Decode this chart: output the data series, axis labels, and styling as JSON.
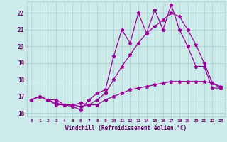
{
  "background_color": "#cceaea",
  "grid_color": "#aacccc",
  "line_color": "#990099",
  "marker": "*",
  "xlabel": "Windchill (Refroidissement éolien,°C)",
  "xlabel_color": "#660066",
  "ylabel_color": "#660066",
  "xlim": [
    -0.5,
    23.5
  ],
  "ylim": [
    15.8,
    22.7
  ],
  "xticks": [
    0,
    1,
    2,
    3,
    4,
    5,
    6,
    7,
    8,
    9,
    10,
    11,
    12,
    13,
    14,
    15,
    16,
    17,
    18,
    19,
    20,
    21,
    22,
    23
  ],
  "yticks": [
    16,
    17,
    18,
    19,
    20,
    21,
    22
  ],
  "series1_x": [
    0,
    1,
    2,
    3,
    4,
    5,
    6,
    7,
    8,
    9,
    10,
    11,
    12,
    13,
    14,
    15,
    16,
    17,
    18,
    19,
    20,
    21,
    22,
    23
  ],
  "series1_y": [
    16.8,
    17.0,
    16.8,
    16.5,
    16.5,
    16.4,
    16.2,
    16.8,
    17.2,
    17.4,
    19.4,
    21.0,
    20.2,
    22.0,
    20.8,
    22.2,
    21.0,
    22.5,
    21.0,
    20.0,
    18.8,
    18.8,
    17.5,
    17.5
  ],
  "series2_x": [
    0,
    1,
    2,
    3,
    4,
    5,
    6,
    7,
    8,
    9,
    10,
    11,
    12,
    13,
    14,
    15,
    16,
    17,
    18,
    19,
    20,
    21,
    22,
    23
  ],
  "series2_y": [
    16.8,
    17.0,
    16.8,
    16.6,
    16.5,
    16.5,
    16.4,
    16.5,
    16.8,
    17.2,
    18.0,
    18.8,
    19.5,
    20.2,
    20.8,
    21.2,
    21.6,
    22.0,
    21.8,
    21.0,
    20.1,
    19.0,
    17.8,
    17.5
  ],
  "series3_x": [
    0,
    1,
    2,
    3,
    4,
    5,
    6,
    7,
    8,
    9,
    10,
    11,
    12,
    13,
    14,
    15,
    16,
    17,
    18,
    19,
    20,
    21,
    22,
    23
  ],
  "series3_y": [
    16.8,
    17.0,
    16.8,
    16.8,
    16.5,
    16.5,
    16.6,
    16.5,
    16.5,
    16.8,
    17.0,
    17.2,
    17.4,
    17.5,
    17.6,
    17.7,
    17.8,
    17.9,
    17.9,
    17.9,
    17.9,
    17.9,
    17.8,
    17.6
  ]
}
